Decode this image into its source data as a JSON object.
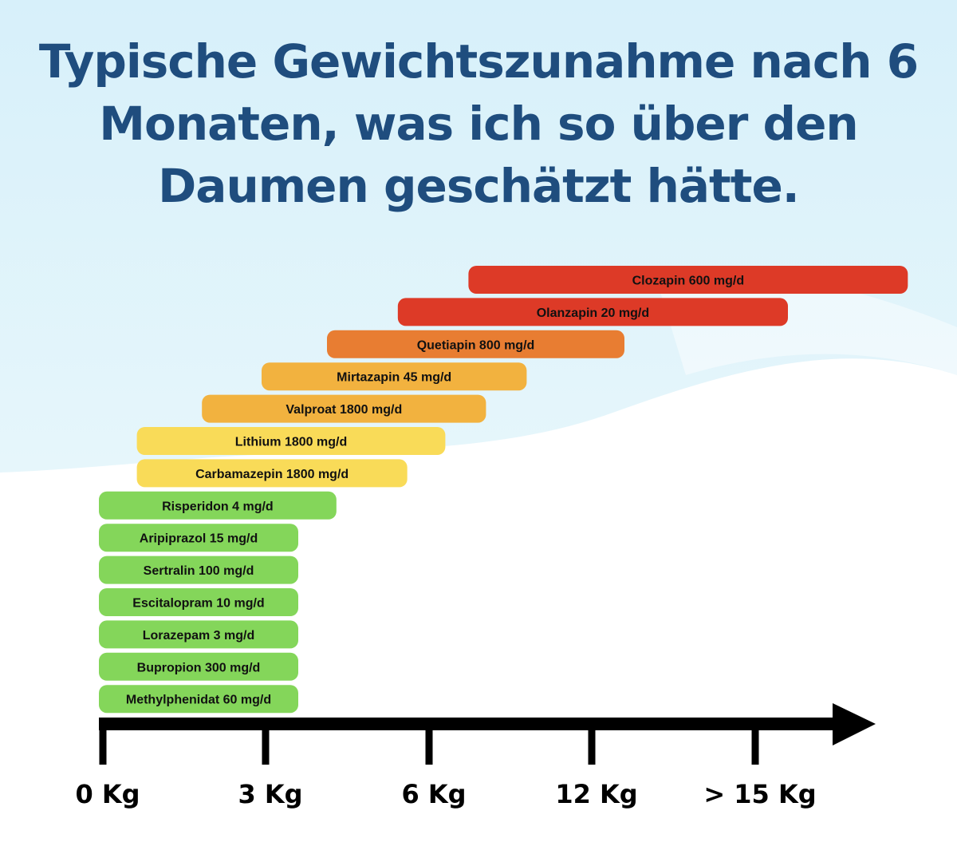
{
  "title": "Typische Gewichtszunahme nach 6 Monaten, was ich so über den Daumen geschätzt hätte.",
  "chart_data": {
    "type": "bar",
    "orientation": "horizontal-range",
    "title": "Typische Gewichtszunahme nach 6 Monaten, was ich so über den Daumen geschätzt hätte.",
    "xlabel": "",
    "ylabel": "",
    "x_ticks": [
      "0 Kg",
      "3 Kg",
      "6 Kg",
      "12 Kg",
      "> 15 Kg"
    ],
    "bars": [
      {
        "label": "Clozapin 600 mg/d",
        "start": 7.6,
        "end": 17.8,
        "color": "#dd3a27"
      },
      {
        "label": "Olanzapin 20 mg/d",
        "start": 5.5,
        "end": 15.6,
        "color": "#dd3a27"
      },
      {
        "label": "Quetiapin 800 mg/d",
        "start": 4.2,
        "end": 12.6,
        "color": "#e87d32"
      },
      {
        "label": "Mirtazapin 45 mg/d",
        "start": 3.0,
        "end": 9.6,
        "color": "#f2b23f"
      },
      {
        "label": "Valproat 1800 mg/d",
        "start": 1.9,
        "end": 8.1,
        "color": "#f2b23f"
      },
      {
        "label": "Lithium 1800 mg/d",
        "start": 0.7,
        "end": 6.6,
        "color": "#f9db58"
      },
      {
        "label": "Carbamazepin 1800 mg/d",
        "start": 0.7,
        "end": 5.6,
        "color": "#f9db58"
      },
      {
        "label": "Risperidon 4 mg/d",
        "start": 0,
        "end": 4.3,
        "color": "#84d65a"
      },
      {
        "label": "Aripiprazol 15 mg/d",
        "start": 0,
        "end": 3.6,
        "color": "#84d65a"
      },
      {
        "label": "Sertralin 100 mg/d",
        "start": 0,
        "end": 3.6,
        "color": "#84d65a"
      },
      {
        "label": "Escitalopram 10 mg/d",
        "start": 0,
        "end": 3.6,
        "color": "#84d65a"
      },
      {
        "label": "Lorazepam 3 mg/d",
        "start": 0,
        "end": 3.6,
        "color": "#84d65a"
      },
      {
        "label": "Bupropion 300 mg/d",
        "start": 0,
        "end": 3.6,
        "color": "#84d65a"
      },
      {
        "label": "Methylphenidat 60 mg/d",
        "start": 0,
        "end": 3.6,
        "color": "#84d65a"
      }
    ]
  },
  "colors": {
    "title": "#1f4d7e",
    "background_top": "#d9f1fa",
    "axis": "#000000"
  }
}
